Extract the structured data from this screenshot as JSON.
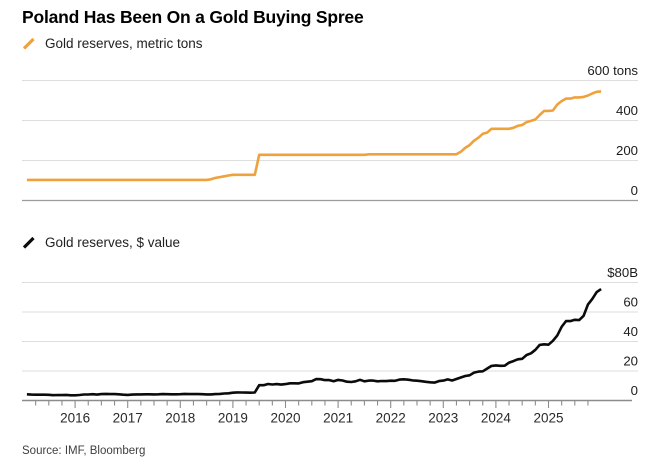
{
  "header": {
    "title": "Poland Has Been On a Gold Buying Spree"
  },
  "source": {
    "label": "Source: IMF, Bloomberg"
  },
  "x_axis": {
    "year_labels": [
      "2016",
      "2017",
      "2018",
      "2019",
      "2020",
      "2021",
      "2022",
      "2023",
      "2024",
      "2025"
    ],
    "range_start": 2015,
    "range_end": 2026,
    "minor_tick": "quarterly"
  },
  "chart_data": [
    {
      "type": "line",
      "name": "gold_reserves_metric_tons",
      "legend": "Gold reserves, metric tons",
      "color": "#EFA23C",
      "unit": "metric tons",
      "ylim": [
        0,
        600
      ],
      "yticks": [
        0,
        200,
        400,
        600
      ],
      "ytick_labels": [
        "0",
        "200",
        "400",
        "600 tons"
      ],
      "x_start": "2015-01",
      "frequency": "monthly",
      "values": [
        102.9,
        102.9,
        102.9,
        102.9,
        102.9,
        102.9,
        102.9,
        102.9,
        102.9,
        102.9,
        102.9,
        102.9,
        102.9,
        102.9,
        102.9,
        102.9,
        102.9,
        102.9,
        102.9,
        102.9,
        102.9,
        102.9,
        102.9,
        102.9,
        102.9,
        102.9,
        102.9,
        102.9,
        102.9,
        102.9,
        102.9,
        102.9,
        102.9,
        102.9,
        102.9,
        102.9,
        102.9,
        102.9,
        102.9,
        102.9,
        102.9,
        102.9,
        105.8,
        112.9,
        117.0,
        121.0,
        125.0,
        128.6,
        128.6,
        128.6,
        128.6,
        128.6,
        128.6,
        228.6,
        228.6,
        228.6,
        228.6,
        228.6,
        228.6,
        228.6,
        228.6,
        228.6,
        228.6,
        228.6,
        228.6,
        228.6,
        228.6,
        228.6,
        228.6,
        228.6,
        228.6,
        228.6,
        228.6,
        228.6,
        228.6,
        228.6,
        228.6,
        228.6,
        230.8,
        230.8,
        230.8,
        230.8,
        230.8,
        230.8,
        230.8,
        230.8,
        230.8,
        230.8,
        230.8,
        230.8,
        230.8,
        230.8,
        230.8,
        230.8,
        230.8,
        230.8,
        230.8,
        230.8,
        230.8,
        243.5,
        263.2,
        276.8,
        299.2,
        314.1,
        333.4,
        339.6,
        358.7,
        358.7,
        358.7,
        358.7,
        358.7,
        363.7,
        373.7,
        377.7,
        391.9,
        398.0,
        405.4,
        427.4,
        448.2,
        448.2,
        450.0,
        480.1,
        496.8,
        509.3,
        509.3,
        515.3,
        515.3,
        518.0,
        525.0,
        535.0,
        543.5,
        545.5
      ]
    },
    {
      "type": "line",
      "name": "gold_reserves_dollar_value",
      "legend": "Gold reserves, $ value",
      "color": "#0B0B0B",
      "unit": "$B",
      "ylim": [
        0,
        80
      ],
      "yticks": [
        0,
        20,
        40,
        60,
        80
      ],
      "ytick_labels": [
        "0",
        "20",
        "40",
        "60",
        "$80B"
      ],
      "x_start": "2015-01",
      "frequency": "monthly",
      "values": [
        4.17,
        4.01,
        3.92,
        3.9,
        3.94,
        3.87,
        3.62,
        3.76,
        3.69,
        3.78,
        3.52,
        3.51,
        3.7,
        4.08,
        4.09,
        4.25,
        4.02,
        4.37,
        4.47,
        4.33,
        4.35,
        4.21,
        3.9,
        3.81,
        4.01,
        4.15,
        4.12,
        4.19,
        4.2,
        4.11,
        4.19,
        4.34,
        4.24,
        4.21,
        4.22,
        4.27,
        4.45,
        4.36,
        4.38,
        4.35,
        4.29,
        4.15,
        4.16,
        4.36,
        4.47,
        4.73,
        4.91,
        5.3,
        5.46,
        5.43,
        5.34,
        5.31,
        5.4,
        10.36,
        10.39,
        11.17,
        10.82,
        11.11,
        10.76,
        11.15,
        11.68,
        11.66,
        11.59,
        12.4,
        12.72,
        13.09,
        14.52,
        14.47,
        13.86,
        13.81,
        13.06,
        13.95,
        13.58,
        12.75,
        12.56,
        13.0,
        14.02,
        13.01,
        13.46,
        13.46,
        13.04,
        13.23,
        13.17,
        13.4,
        13.34,
        14.17,
        14.37,
        14.08,
        13.63,
        13.41,
        13.11,
        12.7,
        12.33,
        12.13,
        13.13,
        13.46,
        14.31,
        13.56,
        14.61,
        15.58,
        16.61,
        17.08,
        18.9,
        19.59,
        19.82,
        21.65,
        23.48,
        23.79,
        23.53,
        23.57,
        25.72,
        26.73,
        27.96,
        28.26,
        30.85,
        32.03,
        34.35,
        37.71,
        38.08,
        37.83,
        40.48,
        44.12,
        49.9,
        53.86,
        53.86,
        54.72,
        54.51,
        57.42,
        65.14,
        68.87,
        73.5,
        75.5
      ]
    }
  ]
}
